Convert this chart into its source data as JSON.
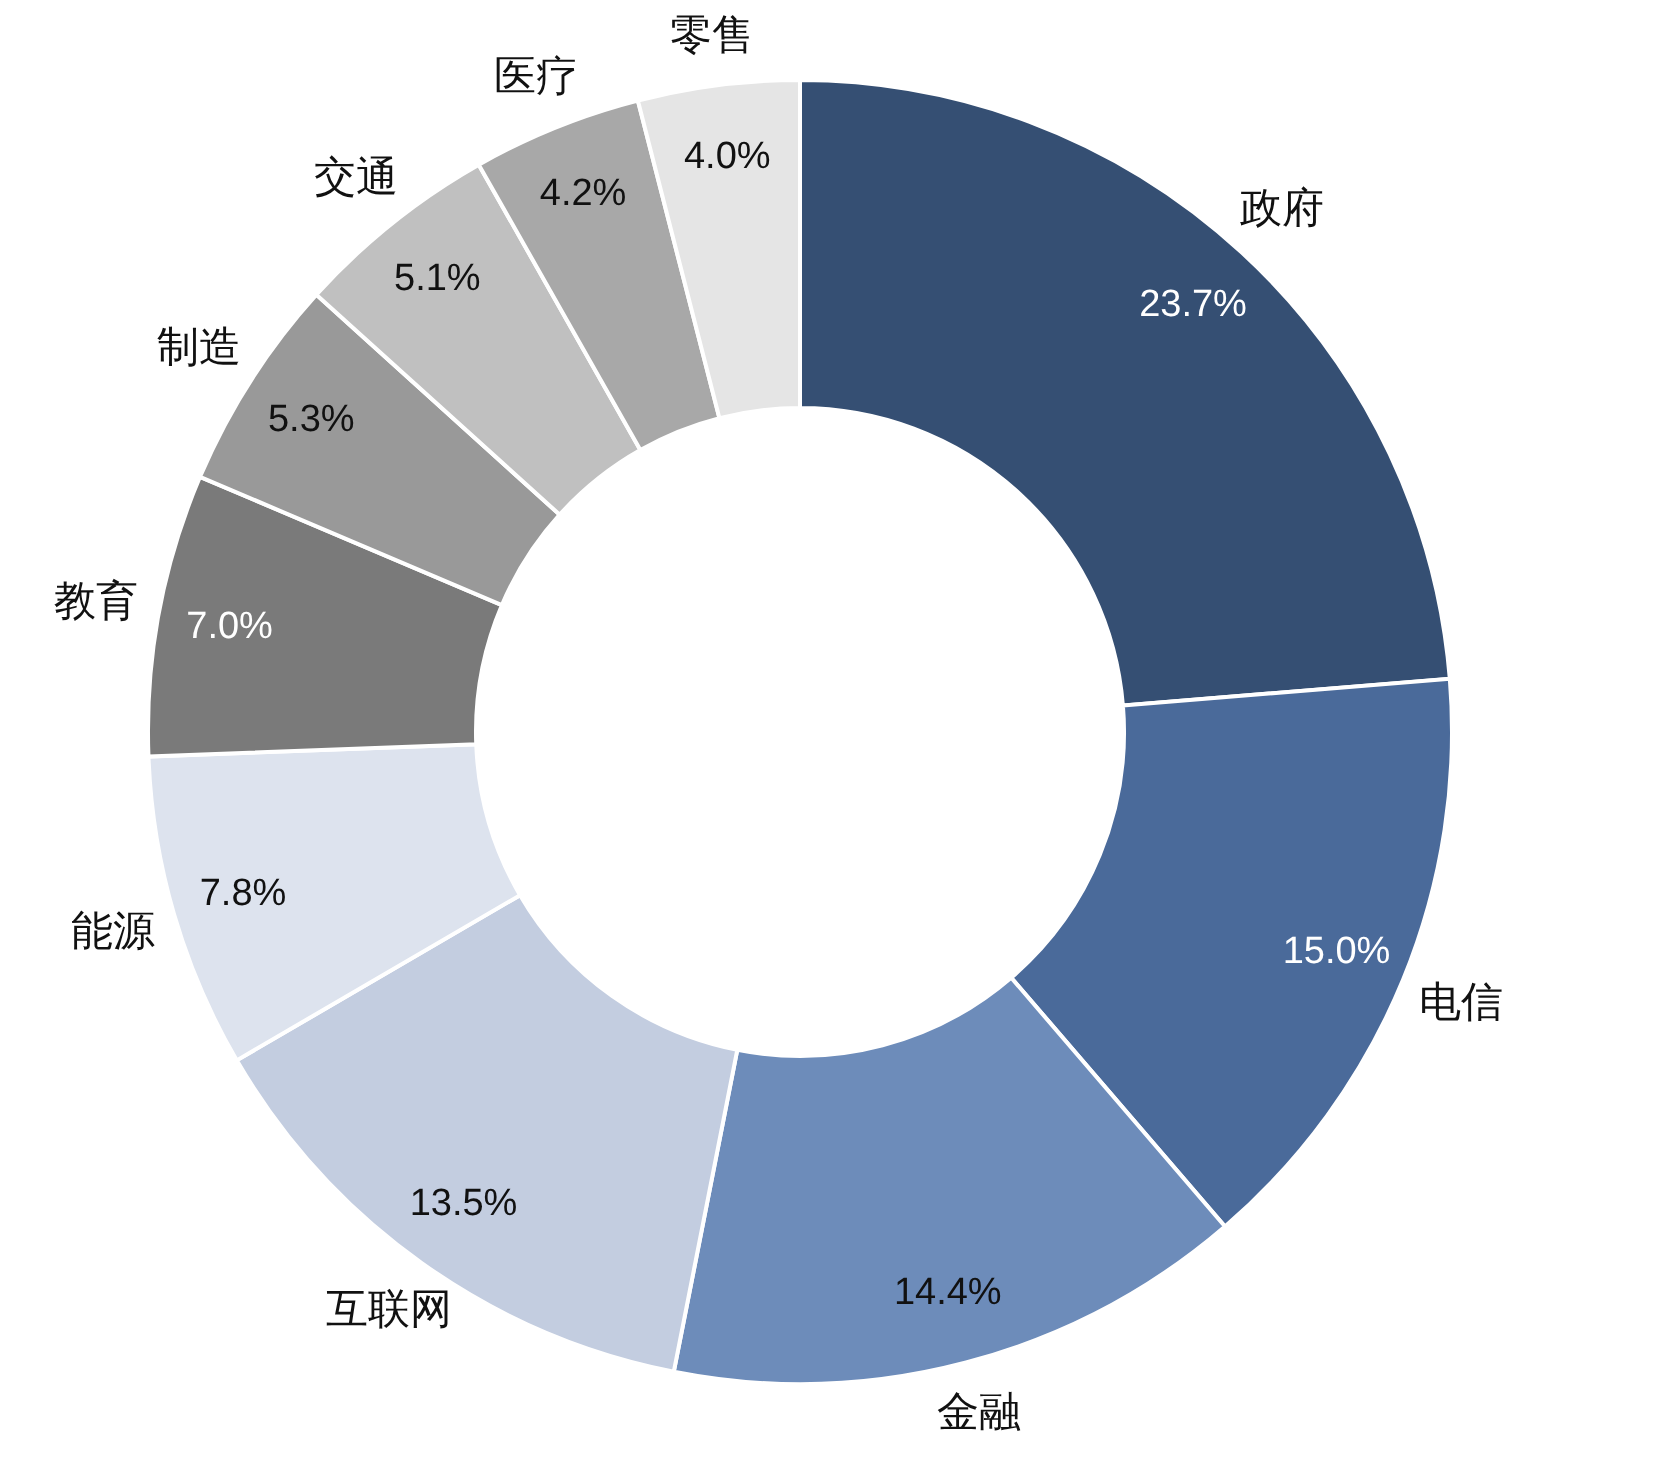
{
  "chart_data": {
    "type": "donut",
    "categories": [
      "政府",
      "电信",
      "金融",
      "互联网",
      "能源",
      "教育",
      "制造",
      "交通",
      "医疗",
      "零售"
    ],
    "values": [
      23.7,
      15.0,
      14.4,
      13.5,
      7.8,
      7.0,
      5.3,
      5.1,
      4.2,
      4.0
    ],
    "value_labels": [
      "23.7%",
      "15.0%",
      "14.4%",
      "13.5%",
      "7.8%",
      "7.0%",
      "5.3%",
      "5.1%",
      "4.2%",
      "4.0%"
    ],
    "colors": [
      "#354f73",
      "#4a6a9a",
      "#6d8cba",
      "#c3cde0",
      "#dde3ee",
      "#7a7a7a",
      "#999999",
      "#c0c0c0",
      "#a8a8a8",
      "#e5e5e5"
    ]
  }
}
